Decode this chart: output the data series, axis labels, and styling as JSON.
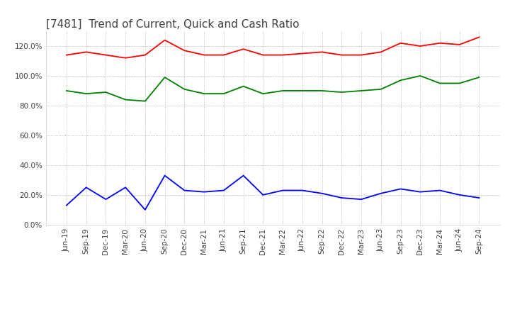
{
  "title": "[7481]  Trend of Current, Quick and Cash Ratio",
  "x_labels": [
    "Jun-19",
    "Sep-19",
    "Dec-19",
    "Mar-20",
    "Jun-20",
    "Sep-20",
    "Dec-20",
    "Mar-21",
    "Jun-21",
    "Sep-21",
    "Dec-21",
    "Mar-22",
    "Jun-22",
    "Sep-22",
    "Dec-22",
    "Mar-23",
    "Jun-23",
    "Sep-23",
    "Dec-23",
    "Mar-24",
    "Jun-24",
    "Sep-24"
  ],
  "current_ratio": [
    114,
    116,
    114,
    112,
    114,
    124,
    117,
    114,
    114,
    118,
    114,
    114,
    115,
    116,
    114,
    114,
    116,
    122,
    120,
    122,
    121,
    126
  ],
  "quick_ratio": [
    90,
    88,
    89,
    84,
    83,
    99,
    91,
    88,
    88,
    93,
    88,
    90,
    90,
    90,
    89,
    90,
    91,
    97,
    100,
    95,
    95,
    99
  ],
  "cash_ratio": [
    13,
    25,
    17,
    25,
    10,
    33,
    23,
    22,
    23,
    33,
    20,
    23,
    23,
    21,
    18,
    17,
    21,
    24,
    22,
    23,
    20,
    18
  ],
  "current_color": "#FF0000",
  "quick_color": "#008000",
  "cash_color": "#0000FF",
  "ylim": [
    0,
    130
  ],
  "yticks": [
    0,
    20,
    40,
    60,
    80,
    100,
    120
  ],
  "background_color": "#FFFFFF",
  "grid_color": "#AAAAAA",
  "title_color": "#404040",
  "title_fontsize": 11
}
